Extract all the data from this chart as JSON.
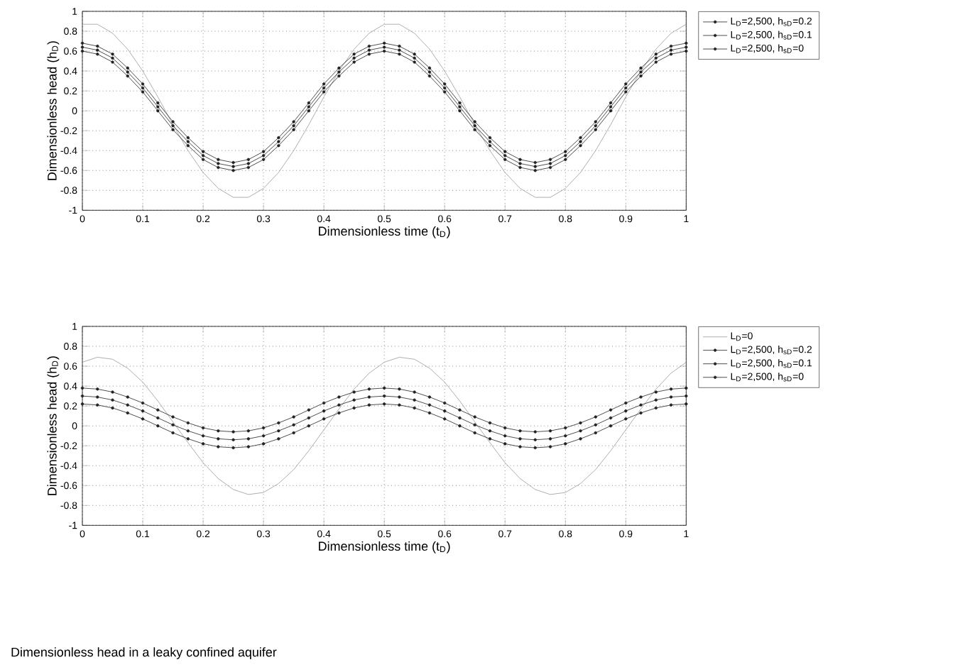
{
  "chart_data": [
    {
      "type": "line",
      "xlabel": "Dimensionless time (t$_{D}$)",
      "ylabel": "Dimensionless head (h$_{D}$)",
      "xlim": [
        0,
        1
      ],
      "ylim": [
        -1,
        1
      ],
      "xticks": [
        0,
        0.1,
        0.2,
        0.3,
        0.4,
        0.5,
        0.6,
        0.7,
        0.8,
        0.9,
        1
      ],
      "yticks": [
        -1,
        -0.8,
        -0.6,
        -0.4,
        -0.2,
        0,
        0.2,
        0.4,
        0.6,
        0.8,
        1
      ],
      "grid": true,
      "legend": "top right",
      "marker": "circle",
      "x": [
        0,
        0.025,
        0.05,
        0.075,
        0.1,
        0.125,
        0.15,
        0.175,
        0.2,
        0.225,
        0.25,
        0.275,
        0.3,
        0.325,
        0.35,
        0.375,
        0.4,
        0.425,
        0.45,
        0.475,
        0.5,
        0.525,
        0.55,
        0.575,
        0.6,
        0.625,
        0.65,
        0.675,
        0.7,
        0.725,
        0.75,
        0.775,
        0.8,
        0.825,
        0.85,
        0.875,
        0.9,
        0.925,
        0.95,
        0.975,
        1
      ],
      "series": [
        {
          "color": "#999999",
          "marker": "none",
          "values": [
            0.87,
            0.87,
            0.78,
            0.62,
            0.4,
            0.14,
            -0.14,
            -0.4,
            -0.62,
            -0.78,
            -0.87,
            -0.87,
            -0.78,
            -0.62,
            -0.4,
            -0.14,
            0.14,
            0.4,
            0.62,
            0.78,
            0.87,
            0.87,
            0.78,
            0.62,
            0.4,
            0.14,
            -0.14,
            -0.4,
            -0.62,
            -0.78,
            -0.87,
            -0.87,
            -0.78,
            -0.62,
            -0.4,
            -0.14,
            0.14,
            0.4,
            0.62,
            0.78,
            0.87
          ]
        },
        {
          "name": "L$_{D}$=2,500, h$_{sD}$=0.2",
          "color": "#222222",
          "values": [
            0.68,
            0.65,
            0.57,
            0.43,
            0.27,
            0.08,
            -0.11,
            -0.27,
            -0.41,
            -0.49,
            -0.52,
            -0.49,
            -0.41,
            -0.27,
            -0.11,
            0.08,
            0.27,
            0.43,
            0.57,
            0.65,
            0.68,
            0.65,
            0.57,
            0.43,
            0.27,
            0.08,
            -0.11,
            -0.27,
            -0.41,
            -0.49,
            -0.52,
            -0.49,
            -0.41,
            -0.27,
            -0.11,
            0.08,
            0.27,
            0.43,
            0.57,
            0.65,
            0.68
          ]
        },
        {
          "name": "L$_{D}$=2,500, h$_{sD}$=0.1",
          "color": "#222222",
          "values": [
            0.64,
            0.61,
            0.53,
            0.39,
            0.23,
            0.04,
            -0.15,
            -0.31,
            -0.45,
            -0.53,
            -0.56,
            -0.53,
            -0.45,
            -0.31,
            -0.15,
            0.04,
            0.23,
            0.39,
            0.53,
            0.61,
            0.64,
            0.61,
            0.53,
            0.39,
            0.23,
            0.04,
            -0.15,
            -0.31,
            -0.45,
            -0.53,
            -0.56,
            -0.53,
            -0.45,
            -0.31,
            -0.15,
            0.04,
            0.23,
            0.39,
            0.53,
            0.61,
            0.64
          ]
        },
        {
          "name": "L$_{D}$=2,500, h$_{sD}$=0",
          "color": "#222222",
          "values": [
            0.6,
            0.57,
            0.49,
            0.35,
            0.19,
            0,
            -0.19,
            -0.35,
            -0.49,
            -0.57,
            -0.6,
            -0.57,
            -0.49,
            -0.35,
            -0.19,
            0,
            0.19,
            0.35,
            0.49,
            0.57,
            0.6,
            0.57,
            0.49,
            0.35,
            0.19,
            0,
            -0.19,
            -0.35,
            -0.49,
            -0.57,
            -0.6,
            -0.57,
            -0.49,
            -0.35,
            -0.19,
            0,
            0.19,
            0.35,
            0.49,
            0.57,
            0.6
          ]
        }
      ]
    },
    {
      "type": "line",
      "xlabel": "Dimensionless time (t$_{D}$)",
      "ylabel": "Dimensionless head (h$_{D}$)",
      "xlim": [
        0,
        1
      ],
      "ylim": [
        -1,
        1
      ],
      "xticks": [
        0,
        0.1,
        0.2,
        0.3,
        0.4,
        0.5,
        0.6,
        0.7,
        0.8,
        0.9,
        1
      ],
      "yticks": [
        -1,
        -0.8,
        -0.6,
        -0.4,
        -0.2,
        0,
        0.2,
        0.4,
        0.6,
        0.8,
        1
      ],
      "grid": true,
      "legend": "top right",
      "marker": "circle",
      "annotations": [
        "Dimensionless head in a leaky confined aquifer"
      ],
      "x": [
        0,
        0.025,
        0.05,
        0.075,
        0.1,
        0.125,
        0.15,
        0.175,
        0.2,
        0.225,
        0.25,
        0.275,
        0.3,
        0.325,
        0.35,
        0.375,
        0.4,
        0.425,
        0.45,
        0.475,
        0.5,
        0.525,
        0.55,
        0.575,
        0.6,
        0.625,
        0.65,
        0.675,
        0.7,
        0.725,
        0.75,
        0.775,
        0.8,
        0.825,
        0.85,
        0.875,
        0.9,
        0.925,
        0.95,
        0.975,
        1
      ],
      "series": [
        {
          "name": "L$_{D}$=0",
          "color": "#999999",
          "marker": "none",
          "values": [
            0.64,
            0.69,
            0.67,
            0.58,
            0.44,
            0.25,
            0.04,
            -0.17,
            -0.37,
            -0.53,
            -0.64,
            -0.69,
            -0.67,
            -0.58,
            -0.44,
            -0.25,
            -0.04,
            0.17,
            0.37,
            0.53,
            0.64,
            0.69,
            0.67,
            0.58,
            0.44,
            0.25,
            0.04,
            -0.17,
            -0.37,
            -0.53,
            -0.64,
            -0.69,
            -0.67,
            -0.58,
            -0.44,
            -0.25,
            -0.04,
            0.17,
            0.37,
            0.53,
            0.64
          ]
        },
        {
          "name": "L$_{D}$=2,500, h$_{sD}$=0.2",
          "color": "#222222",
          "values": [
            0.38,
            0.37,
            0.34,
            0.29,
            0.23,
            0.16,
            0.09,
            0.03,
            -0.02,
            -0.05,
            -0.06,
            -0.05,
            -0.02,
            0.03,
            0.09,
            0.16,
            0.23,
            0.29,
            0.34,
            0.37,
            0.38,
            0.37,
            0.34,
            0.29,
            0.23,
            0.16,
            0.09,
            0.03,
            -0.02,
            -0.05,
            -0.06,
            -0.05,
            -0.02,
            0.03,
            0.09,
            0.16,
            0.23,
            0.29,
            0.34,
            0.37,
            0.38
          ]
        },
        {
          "name": "L$_{D}$=2,500, h$_{sD}$=0.1",
          "color": "#222222",
          "values": [
            0.3,
            0.29,
            0.26,
            0.21,
            0.15,
            0.08,
            0.01,
            -0.05,
            -0.1,
            -0.13,
            -0.14,
            -0.13,
            -0.1,
            -0.05,
            0.01,
            0.08,
            0.15,
            0.21,
            0.26,
            0.29,
            0.3,
            0.29,
            0.26,
            0.21,
            0.15,
            0.08,
            0.01,
            -0.05,
            -0.1,
            -0.13,
            -0.14,
            -0.13,
            -0.1,
            -0.05,
            0.01,
            0.08,
            0.15,
            0.21,
            0.26,
            0.29,
            0.3
          ]
        },
        {
          "name": "L$_{D}$=2,500, h$_{sD}$=0",
          "color": "#222222",
          "values": [
            0.22,
            0.21,
            0.18,
            0.13,
            0.07,
            0,
            -0.07,
            -0.13,
            -0.18,
            -0.21,
            -0.22,
            -0.21,
            -0.18,
            -0.13,
            -0.07,
            0,
            0.07,
            0.13,
            0.18,
            0.21,
            0.22,
            0.21,
            0.18,
            0.13,
            0.07,
            0,
            -0.07,
            -0.13,
            -0.18,
            -0.21,
            -0.22,
            -0.21,
            -0.18,
            -0.13,
            -0.07,
            0,
            0.07,
            0.13,
            0.18,
            0.21,
            0.22
          ]
        }
      ]
    }
  ]
}
